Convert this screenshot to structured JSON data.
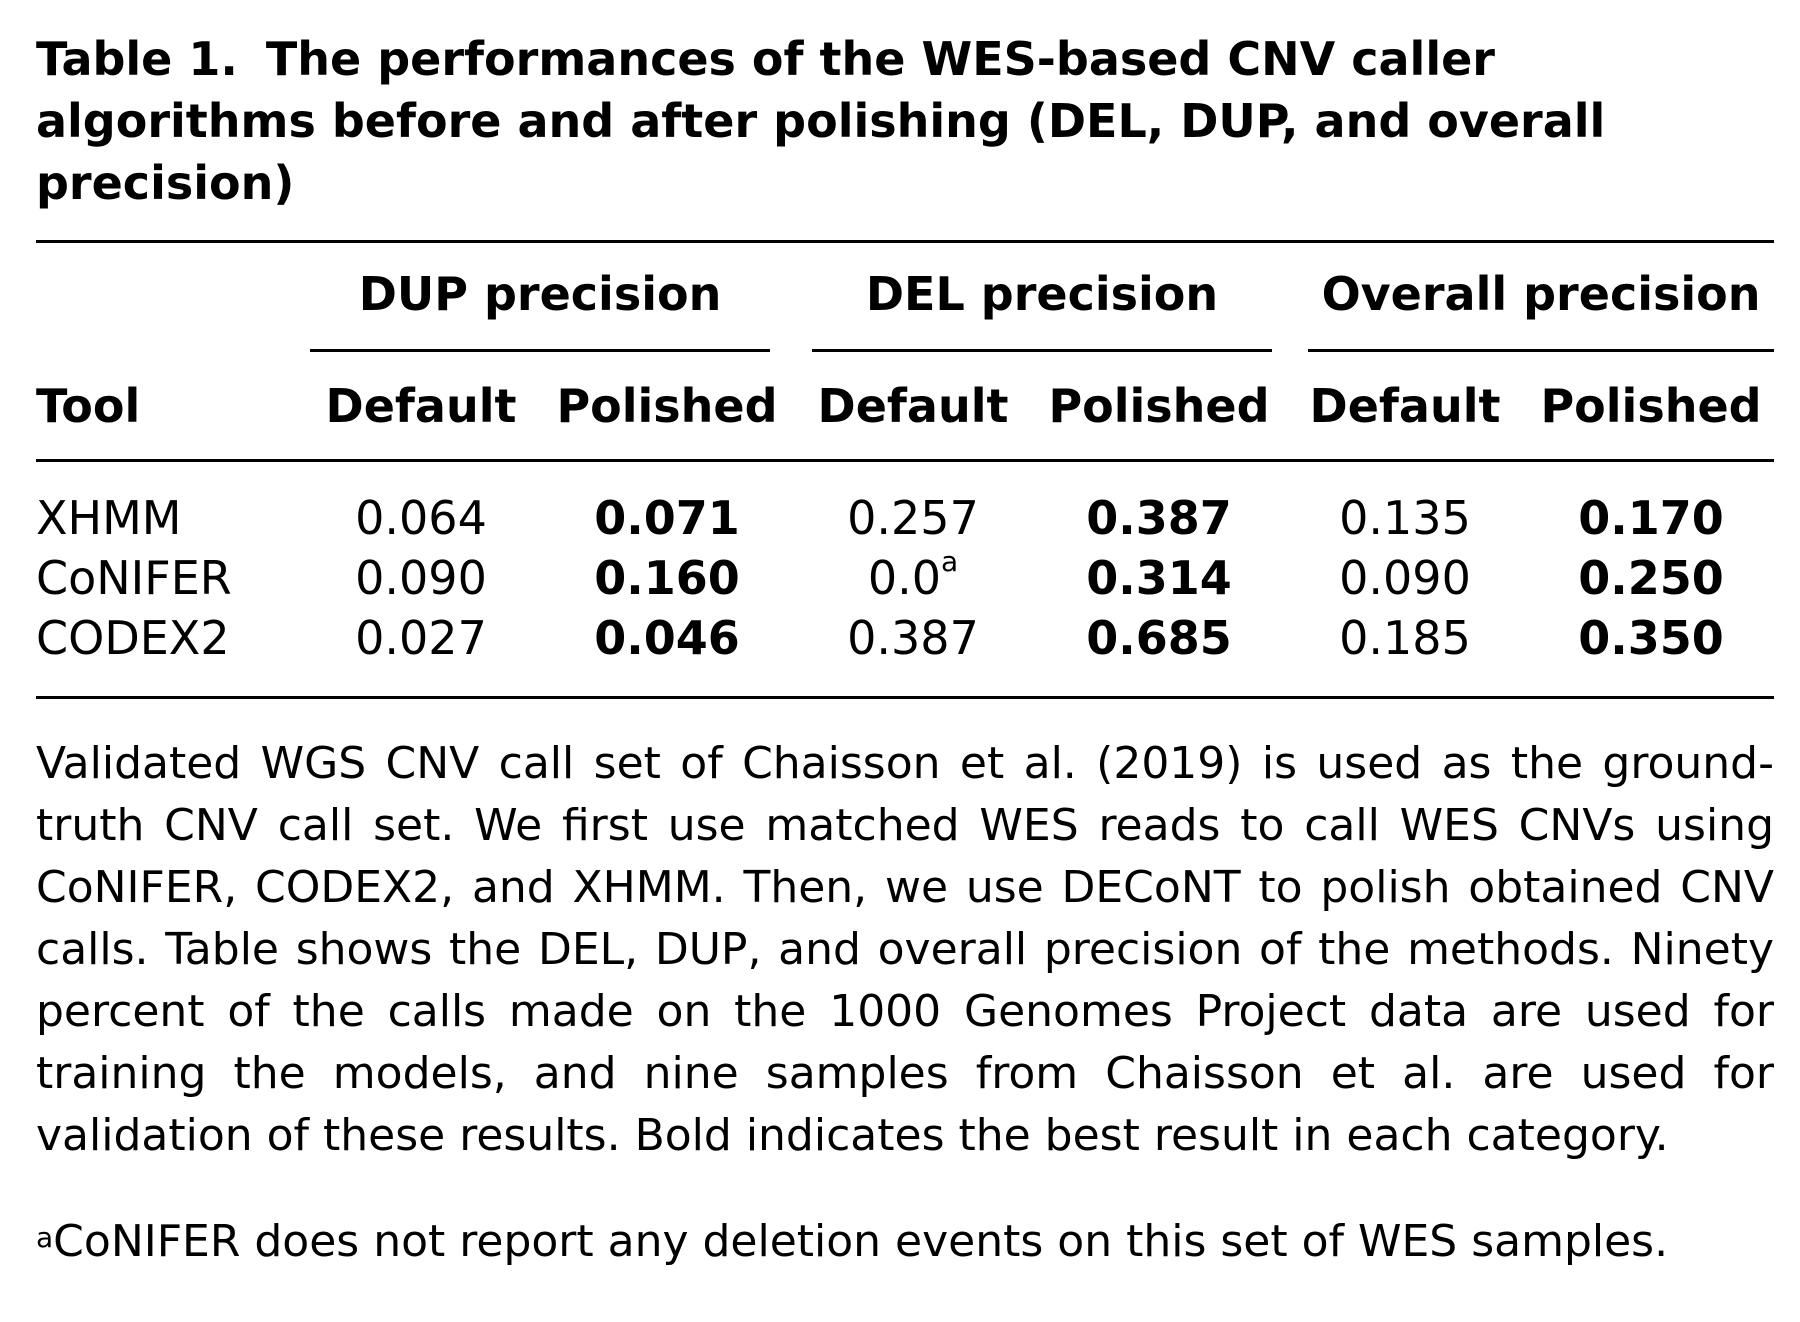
{
  "title": {
    "label": "Table 1.",
    "text": "The performances of the WES-based CNV caller algorithms before and after polishing (DEL, DUP, and overall precision)"
  },
  "table": {
    "groups": [
      "DUP precision",
      "DEL precision",
      "Overall precision"
    ],
    "tool_header": "Tool",
    "sub_headers": [
      "Default",
      "Polished",
      "Default",
      "Polished",
      "Default",
      "Polished"
    ],
    "rows": [
      {
        "tool": "XHMM",
        "values": [
          "0.064",
          "0.071",
          "0.257",
          "0.387",
          "0.135",
          "0.170"
        ],
        "footnote_marks": [
          "",
          "",
          "",
          "",
          "",
          ""
        ],
        "bold": [
          false,
          true,
          false,
          true,
          false,
          true
        ]
      },
      {
        "tool": "CoNIFER",
        "values": [
          "0.090",
          "0.160",
          "0.0",
          "0.314",
          "0.090",
          "0.250"
        ],
        "footnote_marks": [
          "",
          "",
          "a",
          "",
          "",
          ""
        ],
        "bold": [
          false,
          true,
          false,
          true,
          false,
          true
        ]
      },
      {
        "tool": "CODEX2",
        "values": [
          "0.027",
          "0.046",
          "0.387",
          "0.685",
          "0.185",
          "0.350"
        ],
        "footnote_marks": [
          "",
          "",
          "",
          "",
          "",
          ""
        ],
        "bold": [
          false,
          true,
          false,
          true,
          false,
          true
        ]
      }
    ]
  },
  "caption": "Validated WGS CNV call set of Chaisson et al. (2019) is used as the ground-truth CNV call set. We first use matched WES reads to call WES CNVs using CoNIFER, CODEX2, and XHMM. Then, we use DECoNT to polish obtained CNV calls. Table shows the DEL, DUP, and overall precision of the methods. Ninety percent of the calls made on the 1000 Genomes Project data are used for training the models, and nine samples from Chaisson et al. are used for validation of these results. Bold indicates the best result in each category.",
  "footnote": {
    "mark": "a",
    "text": "CoNIFER does not report any deletion events on this set of WES samples."
  }
}
